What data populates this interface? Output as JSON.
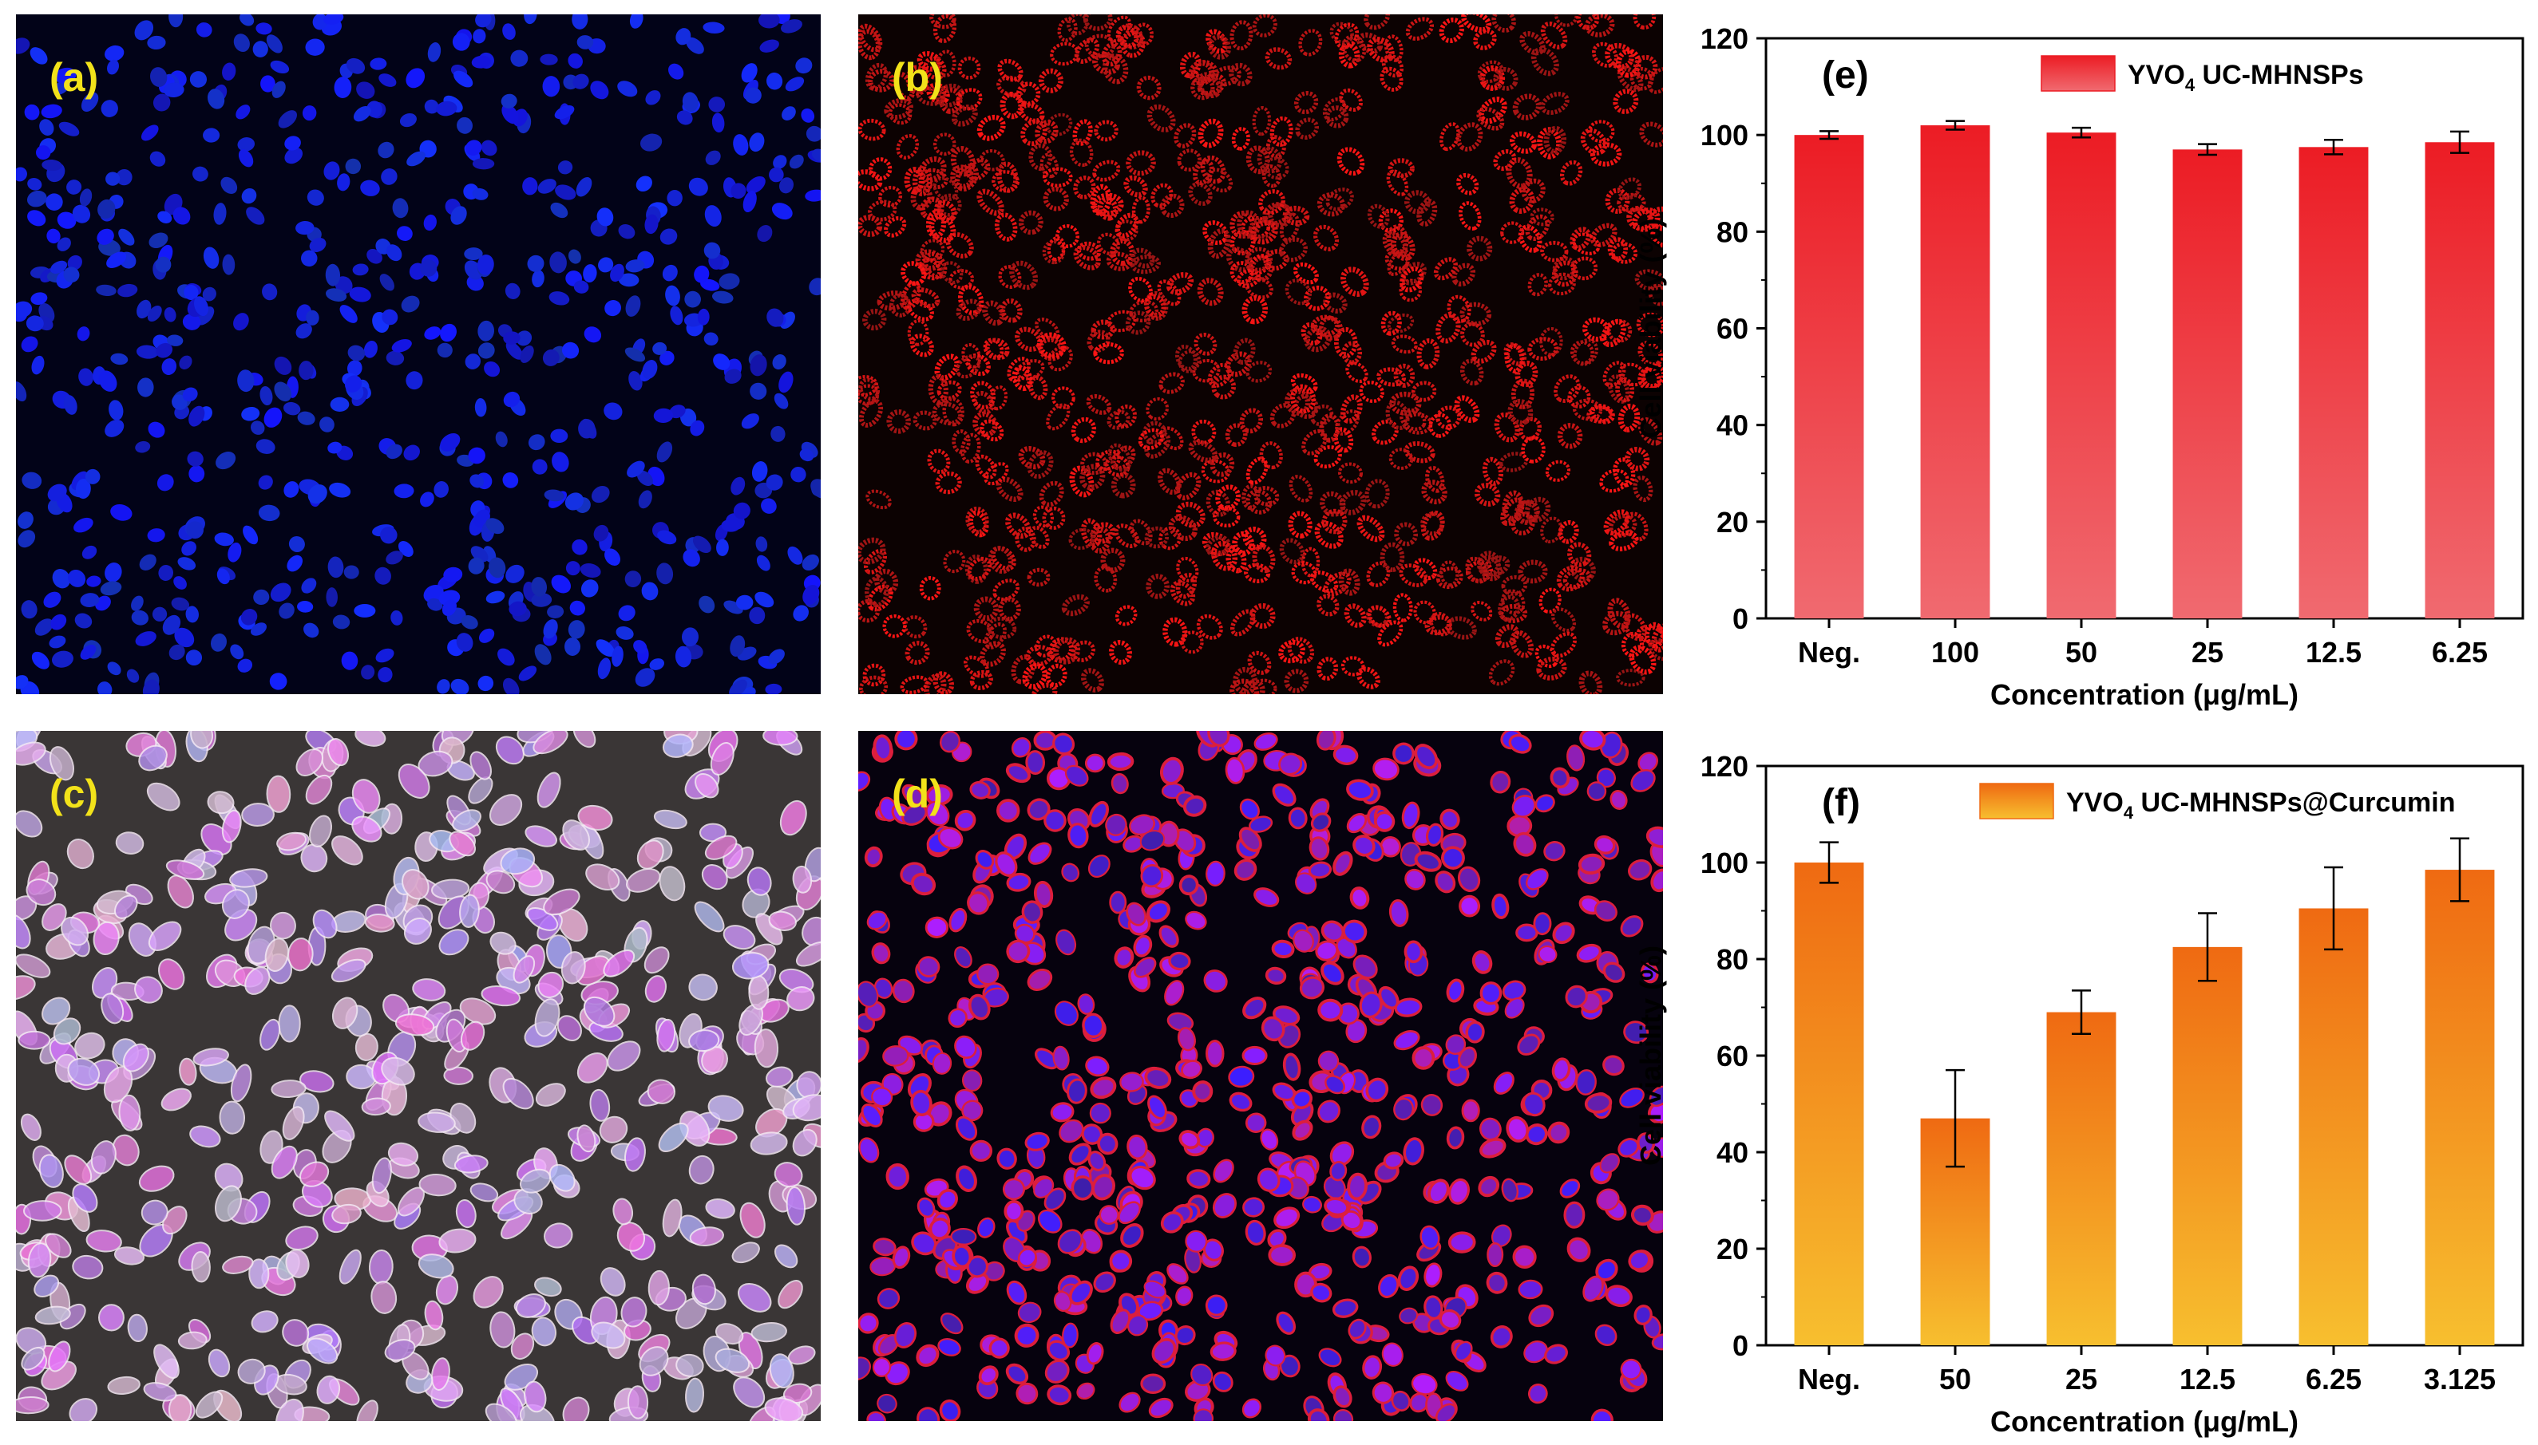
{
  "micrographs": [
    {
      "label": "(a)",
      "stain": "blue nuclei",
      "color": "#1a1fd8"
    },
    {
      "label": "(b)",
      "stain": "red fluorescence",
      "color": "#d81414"
    },
    {
      "label": "(c)",
      "stain": "merged with bright field",
      "color": "#c86ad8"
    },
    {
      "label": "(d)",
      "stain": "merged",
      "color": "#8a32c8"
    }
  ],
  "chart_data": [
    {
      "type": "bar",
      "panel_label": "(e)",
      "legend": "YVO4 UC-MHNSPs",
      "legend_main": "YVO",
      "legend_sub": "4",
      "legend_rest": " UC-MHNSPs",
      "categories": [
        "Neg.",
        "100",
        "50",
        "25",
        "12.5",
        "6.25"
      ],
      "values": [
        100,
        102,
        100.5,
        97,
        97.5,
        98.5
      ],
      "errors": [
        0.8,
        0.9,
        1.0,
        1.1,
        1.5,
        2.2
      ],
      "ylabel": "Cell viability (%)",
      "xlabel": "Concentration (μg/mL)",
      "ylim": [
        0,
        120
      ],
      "yticks": [
        "0",
        "20",
        "40",
        "60",
        "80",
        "100",
        "120"
      ],
      "color_top": "#ec1c24",
      "color_bottom": "#f06a70"
    },
    {
      "type": "bar",
      "panel_label": "(f)",
      "legend": "YVO4 UC-MHNSPs@Curcumin",
      "legend_main": "YVO",
      "legend_sub": "4",
      "legend_rest": " UC-MHNSPs@Curcumin",
      "categories": [
        "Neg.",
        "50",
        "25",
        "12.5",
        "6.25",
        "3.125"
      ],
      "values": [
        100,
        47,
        69,
        82.5,
        90.5,
        98.5
      ],
      "errors": [
        4.2,
        10,
        4.5,
        7,
        8.5,
        6.5
      ],
      "ylabel": "Cell viability (%)",
      "xlabel": "Concentration (μg/mL)",
      "ylim": [
        0,
        120
      ],
      "yticks": [
        "0",
        "20",
        "40",
        "60",
        "80",
        "100",
        "120"
      ],
      "color_top": "#ef6a12",
      "color_bottom": "#f7bf2f"
    }
  ]
}
